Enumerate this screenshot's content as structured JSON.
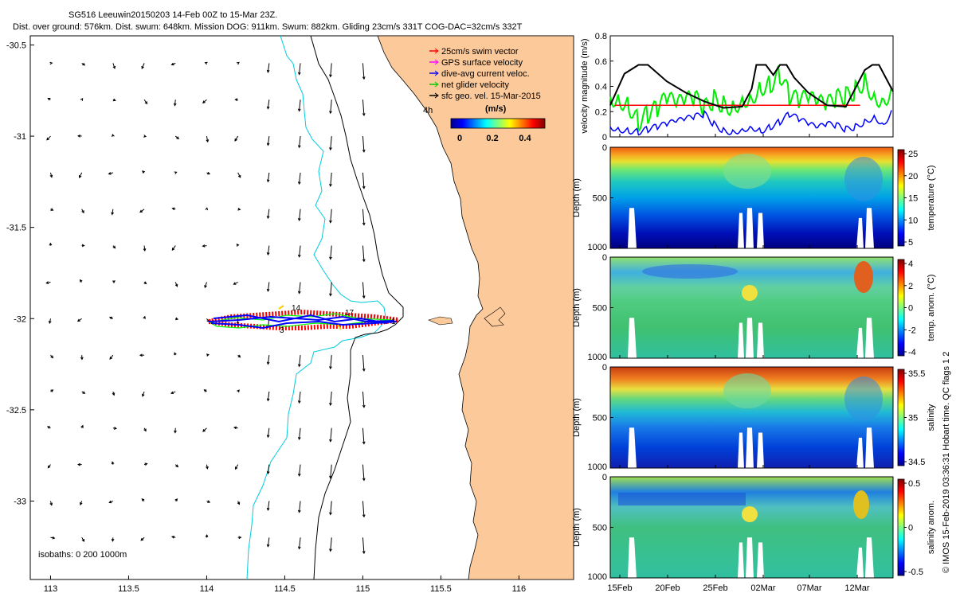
{
  "header": {
    "title": "SG516 Leeuwin20150203 14-Feb 00Z to 15-Mar 23Z.",
    "subtitle": "Dist. over ground: 576km. Dist. swum: 648km. Mission DOG: 911km. Swum: 882km. Gliding 23cm/s 331T COG-DAC=32cm/s 332T"
  },
  "colors": {
    "land": "#fcc99a",
    "swim": "#ff0000",
    "gps": "#ff00ff",
    "dac": "#0000ff",
    "net": "#00ff00",
    "geo": "#000000",
    "isobath200": "#00ccdd",
    "isobath1000": "#000000"
  },
  "map": {
    "legend": [
      {
        "label": "25cm/s swim vector",
        "color": "#ff0000"
      },
      {
        "label": "GPS surface velocity",
        "color": "#ff00ff"
      },
      {
        "label": "dive-avg current veloc.",
        "color": "#0000ff"
      },
      {
        "label": "net glider velocity",
        "color": "#00cc00"
      },
      {
        "label": "sfc geo. vel. 15-Mar-2015",
        "color": "#000000"
      }
    ],
    "scale_label": "4h",
    "colorbar_title": "(m/s)",
    "colorbar_ticks": [
      "0",
      "0.2",
      "0.4"
    ],
    "isobaths_label": "isobaths: 0   200  1000m",
    "x_ticks": [
      "113",
      "113.5",
      "114",
      "114.5",
      "115",
      "115.5",
      "116"
    ],
    "y_ticks": [
      "-30.5",
      "-31",
      "-31.5",
      "-32",
      "-32.5",
      "-33"
    ],
    "track_labels": [
      "14",
      "17",
      "1",
      "3"
    ]
  },
  "chart_data": [
    {
      "type": "line",
      "title": "velocity magnitude",
      "ylabel": "velocity magnitude (m/s)",
      "ylim": [
        0,
        0.8
      ],
      "yticks": [
        "0",
        "0.2",
        "0.4",
        "0.6",
        "0.8"
      ],
      "xlim_days": [
        0,
        30
      ],
      "series": [
        {
          "name": "geostrophic speed",
          "color": "#000000",
          "x": [
            0,
            1.5,
            3,
            4,
            6,
            8,
            10,
            12,
            14,
            15,
            15.5,
            16.5,
            17.3,
            18,
            18.7,
            19.5,
            21,
            23,
            25,
            27,
            27.8,
            28.5,
            30
          ],
          "values": [
            0.25,
            0.5,
            0.57,
            0.57,
            0.44,
            0.35,
            0.28,
            0.23,
            0.24,
            0.38,
            0.57,
            0.57,
            0.49,
            0.57,
            0.57,
            0.47,
            0.35,
            0.25,
            0.24,
            0.53,
            0.57,
            0.57,
            0.36
          ]
        },
        {
          "name": "swim speed",
          "color": "#ff0000",
          "x": [
            0.5,
            26.5
          ],
          "values": [
            0.25,
            0.25
          ]
        },
        {
          "name": "net glider speed",
          "color": "#00ee00",
          "x": [
            0,
            1,
            2,
            3,
            4,
            5,
            6,
            7,
            8,
            9,
            10,
            11,
            12,
            13,
            14,
            15,
            16,
            17,
            18,
            19,
            20,
            21,
            22,
            23,
            24,
            25,
            26,
            27,
            28,
            29,
            30
          ],
          "values": [
            0.32,
            0.3,
            0.25,
            0.12,
            0.18,
            0.22,
            0.3,
            0.25,
            0.28,
            0.3,
            0.22,
            0.3,
            0.26,
            0.24,
            0.3,
            0.32,
            0.4,
            0.42,
            0.5,
            0.32,
            0.28,
            0.3,
            0.26,
            0.25,
            0.3,
            0.32,
            0.37,
            0.45,
            0.32,
            0.3,
            0.38
          ]
        },
        {
          "name": "dive-avg current speed",
          "color": "#0000ff",
          "x": [
            0,
            1,
            2,
            3,
            4,
            5,
            6,
            7,
            8,
            9,
            10,
            11,
            12,
            13,
            14,
            15,
            16,
            17,
            18,
            19,
            20,
            21,
            22,
            23,
            24,
            25,
            26,
            27,
            28,
            29,
            30
          ],
          "values": [
            0.08,
            0.06,
            0.05,
            0.04,
            0.06,
            0.08,
            0.1,
            0.12,
            0.14,
            0.16,
            0.18,
            0.1,
            0.05,
            0.04,
            0.06,
            0.08,
            0.05,
            0.08,
            0.12,
            0.18,
            0.14,
            0.1,
            0.07,
            0.1,
            0.09,
            0.06,
            0.08,
            0.12,
            0.16,
            0.1,
            0.22
          ]
        }
      ]
    },
    {
      "type": "heatmap",
      "variable": "temperature",
      "clabel": "temperature (°C)",
      "ylabel": "Depth (m)",
      "yticks": [
        "0",
        "500",
        "1000"
      ],
      "cticks": [
        "25",
        "20",
        "15",
        "10",
        "5"
      ]
    },
    {
      "type": "heatmap",
      "variable": "temp. anom.",
      "clabel": "temp. anom. (°C)",
      "ylabel": "Depth (m)",
      "yticks": [
        "0",
        "500",
        "1000"
      ],
      "cticks": [
        "4",
        "2",
        "0",
        "-2",
        "-4"
      ]
    },
    {
      "type": "heatmap",
      "variable": "salinity",
      "clabel": "salinity",
      "ylabel": "Depth (m)",
      "yticks": [
        "0",
        "500",
        "1000"
      ],
      "cticks": [
        "35.5",
        "35",
        "34.5"
      ]
    },
    {
      "type": "heatmap",
      "variable": "salinity anom.",
      "clabel": "salinity anom.",
      "ylabel": "Depth (m)",
      "yticks": [
        "0",
        "500",
        "1000"
      ],
      "cticks": [
        "0.5",
        "0",
        "-0.5"
      ],
      "xticks": [
        "15Feb",
        "20Feb",
        "25Feb",
        "02Mar",
        "07Mar",
        "12Mar"
      ]
    }
  ],
  "credit": "© IMOS 15-Feb-2019 03:36:31 Hobart time. QC flags 1  2"
}
